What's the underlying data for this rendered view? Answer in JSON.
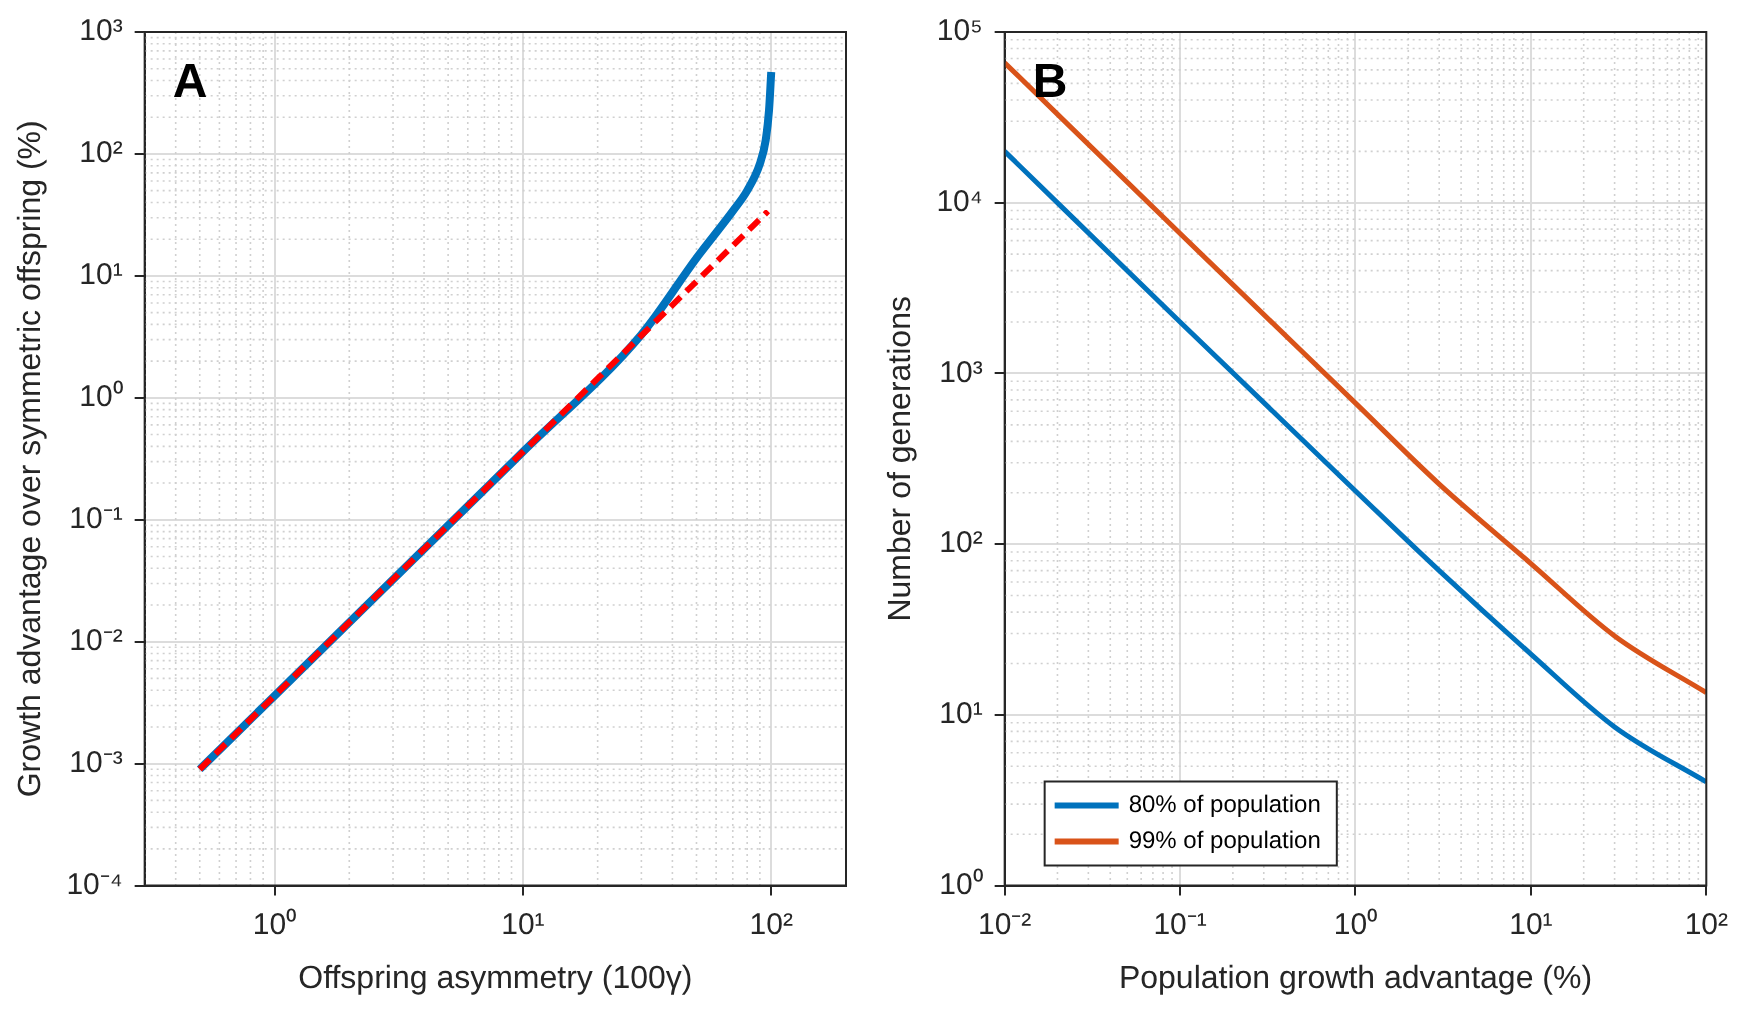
{
  "chart_data": [
    {
      "type": "line",
      "xlabel": "Offspring asymmetry (100γ)",
      "ylabel": "Growth advantage over symmetric offspring (%)",
      "annotations": [
        "A"
      ],
      "log": "xy",
      "grid": true,
      "xlim": [
        0.3,
        200
      ],
      "xticks": [
        {
          "value": 1,
          "label": "10⁰"
        },
        {
          "value": 10,
          "label": "10¹"
        },
        {
          "value": 100,
          "label": "10²"
        }
      ],
      "ylim": [
        0.0001,
        1000
      ],
      "yticks": [
        {
          "value": 0.0001,
          "label": "10⁻⁴"
        },
        {
          "value": 0.001,
          "label": "10⁻³"
        },
        {
          "value": 0.01,
          "label": "10⁻²"
        },
        {
          "value": 0.1,
          "label": "10⁻¹"
        },
        {
          "value": 1,
          "label": "10⁰"
        },
        {
          "value": 10,
          "label": "10¹"
        },
        {
          "value": 100,
          "label": "10²"
        },
        {
          "value": 1000,
          "label": "10³"
        }
      ],
      "series": [
        {
          "color": "#0072bd",
          "x": [
            0.5,
            1,
            10,
            30,
            50,
            70,
            80,
            90,
            95,
            98,
            100
          ],
          "values": [
            0.0009,
            0.0036,
            0.36,
            3.3,
            14,
            34,
            50,
            83,
            130,
            230,
            470
          ]
        },
        {
          "color": "#ff0000",
          "line_style": "dashed",
          "x": [
            0.5,
            1,
            10,
            97
          ],
          "values": [
            0.0009,
            0.0036,
            0.36,
            33.9
          ]
        }
      ]
    },
    {
      "type": "line",
      "xlabel": "Population growth advantage (%)",
      "ylabel": "Number of generations",
      "annotations": [
        "B"
      ],
      "log": "xy",
      "grid": true,
      "legend": "bottom left",
      "xlim": [
        0.01,
        100
      ],
      "xticks": [
        {
          "value": 0.01,
          "label": "10⁻²"
        },
        {
          "value": 0.1,
          "label": "10⁻¹"
        },
        {
          "value": 1,
          "label": "10⁰"
        },
        {
          "value": 10,
          "label": "10¹"
        },
        {
          "value": 100,
          "label": "10²"
        }
      ],
      "ylim": [
        1,
        100000
      ],
      "yticks": [
        {
          "value": 1,
          "label": "10⁰"
        },
        {
          "value": 10,
          "label": "10¹"
        },
        {
          "value": 100,
          "label": "10²"
        },
        {
          "value": 1000,
          "label": "10³"
        },
        {
          "value": 10000,
          "label": "10⁴"
        },
        {
          "value": 100000,
          "label": "10⁵"
        }
      ],
      "series": [
        {
          "name": "80% of population",
          "color": "#0072bd",
          "x": [
            0.01,
            0.1,
            1,
            3,
            10,
            30,
            100
          ],
          "values": [
            20000,
            2000,
            205,
            70,
            22.7,
            8.5,
            4.05
          ]
        },
        {
          "name": "99% of population",
          "color": "#d95319",
          "x": [
            0.01,
            0.1,
            1,
            3,
            10,
            30,
            100
          ],
          "values": [
            66000,
            6600,
            670,
            225,
            77,
            29,
            13.5
          ]
        }
      ]
    }
  ]
}
